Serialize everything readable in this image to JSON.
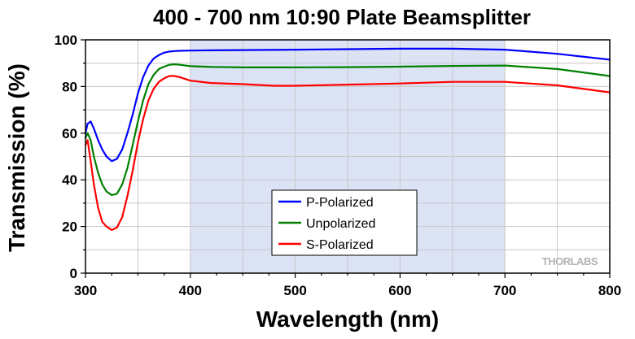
{
  "chart_data": {
    "type": "line",
    "title": "400 - 700 nm 10:90 Plate Beamsplitter",
    "xlabel": "Wavelength (nm)",
    "ylabel": "Transmission (%)",
    "xlim": [
      300,
      800
    ],
    "ylim": [
      0,
      100
    ],
    "xticks": [
      300,
      400,
      500,
      600,
      700,
      800
    ],
    "yticks": [
      0,
      20,
      40,
      60,
      80,
      100
    ],
    "grid": true,
    "shaded_range": [
      400,
      700
    ],
    "shaded_color": "#dbe3f5",
    "legend_position": "center",
    "watermark": "THORLABS",
    "series": [
      {
        "name": "P-Polarized",
        "color": "#0000ff",
        "x": [
          300,
          302,
          305,
          308,
          312,
          316,
          320,
          325,
          330,
          335,
          340,
          345,
          350,
          355,
          360,
          365,
          370,
          375,
          380,
          385,
          390,
          400,
          420,
          450,
          500,
          550,
          600,
          650,
          700,
          750,
          800
        ],
        "y": [
          60,
          64,
          65,
          62,
          57,
          53,
          50,
          48,
          49,
          53,
          60,
          68,
          77,
          84,
          89,
          92,
          93.5,
          94.5,
          95,
          95.2,
          95.3,
          95.4,
          95.5,
          95.6,
          95.8,
          96,
          96.2,
          96.2,
          95.8,
          94,
          91.5
        ]
      },
      {
        "name": "Unpolarized",
        "color": "#008000",
        "x": [
          300,
          302,
          305,
          308,
          312,
          316,
          320,
          325,
          330,
          335,
          340,
          345,
          350,
          355,
          360,
          365,
          370,
          375,
          380,
          385,
          390,
          400,
          420,
          450,
          500,
          550,
          600,
          650,
          700,
          750,
          800
        ],
        "y": [
          58,
          60,
          57,
          50,
          43,
          38,
          35,
          33.5,
          34,
          38,
          45,
          55,
          65,
          74,
          81,
          85,
          87.5,
          88.5,
          89.3,
          89.5,
          89.3,
          88.7,
          88.4,
          88.2,
          88.2,
          88.3,
          88.5,
          88.8,
          89,
          87.5,
          84.5
        ]
      },
      {
        "name": "S-Polarized",
        "color": "#ff0000",
        "x": [
          300,
          302,
          305,
          308,
          312,
          316,
          320,
          325,
          330,
          335,
          340,
          345,
          350,
          355,
          360,
          365,
          370,
          375,
          380,
          385,
          390,
          400,
          420,
          450,
          480,
          500,
          550,
          600,
          650,
          700,
          750,
          800
        ],
        "y": [
          55,
          57,
          48,
          38,
          28,
          22,
          20,
          18.5,
          19.5,
          24,
          33,
          44,
          56,
          66,
          74,
          79,
          82,
          83.5,
          84.5,
          84.5,
          84,
          82.5,
          81.5,
          81,
          80.3,
          80.3,
          80.8,
          81.3,
          82,
          82,
          80.5,
          77.5
        ]
      }
    ]
  }
}
